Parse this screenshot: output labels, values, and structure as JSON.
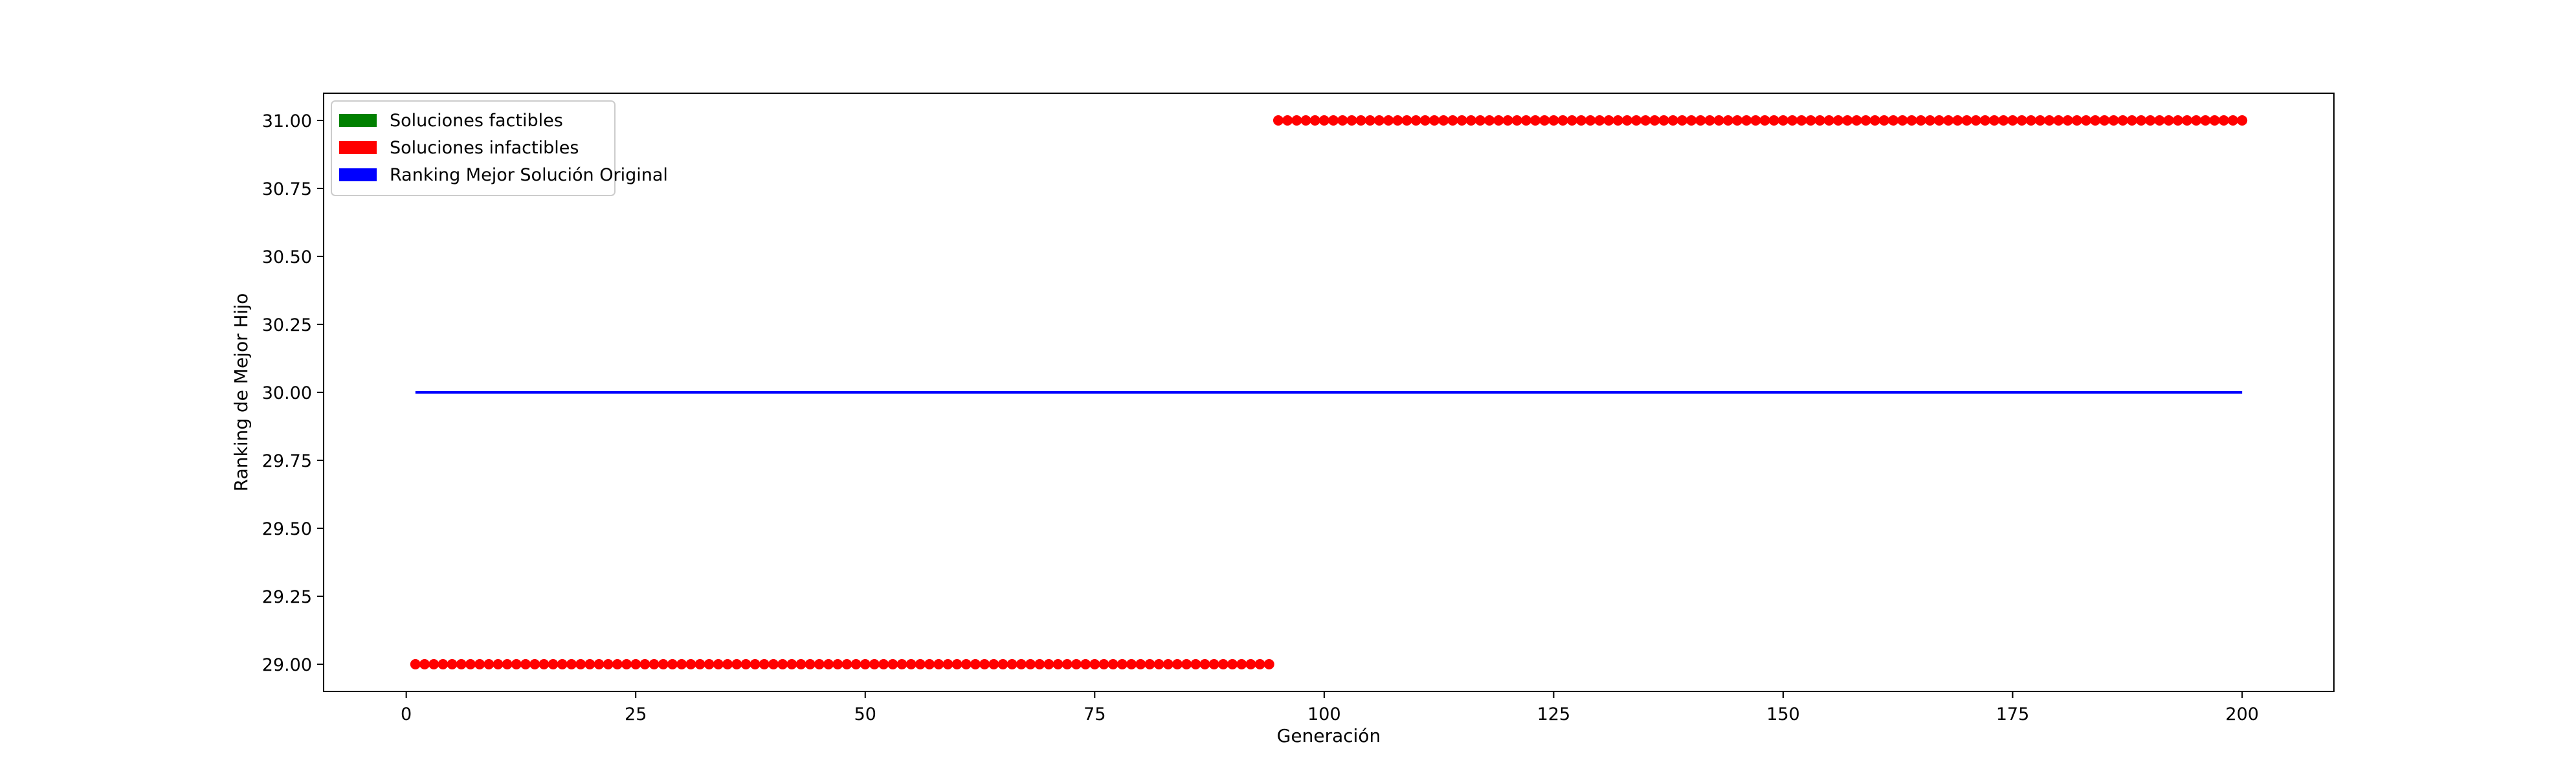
{
  "chart_data": {
    "type": "scatter",
    "xlabel": "Generación",
    "ylabel": "Ranking de Mejor Hijo",
    "xlim": [
      -9,
      210
    ],
    "ylim": [
      28.9,
      31.1
    ],
    "x_ticks": [
      0,
      25,
      50,
      75,
      100,
      125,
      150,
      175,
      200
    ],
    "y_ticks": [
      29.0,
      29.25,
      29.5,
      29.75,
      30.0,
      30.25,
      30.5,
      30.75,
      31.0
    ],
    "grid": false,
    "legend": {
      "placement": "top-left",
      "entries": [
        {
          "label": "Soluciones factibles",
          "color": "#008000"
        },
        {
          "label": "Soluciones infactibles",
          "color": "#ff0000"
        },
        {
          "label": "Ranking Mejor Solución Original",
          "color": "#0000ff"
        }
      ]
    },
    "series": [
      {
        "name": "Soluciones infactibles",
        "kind": "points",
        "color": "#ff0000",
        "segments": [
          {
            "x_start": 1,
            "x_end": 94,
            "y": 29.0
          },
          {
            "x_start": 95,
            "x_end": 200,
            "y": 31.0
          }
        ]
      },
      {
        "name": "Ranking Mejor Solución Original",
        "kind": "line",
        "color": "#0000ff",
        "x": [
          1,
          200
        ],
        "y": [
          30.0,
          30.0
        ]
      }
    ]
  }
}
